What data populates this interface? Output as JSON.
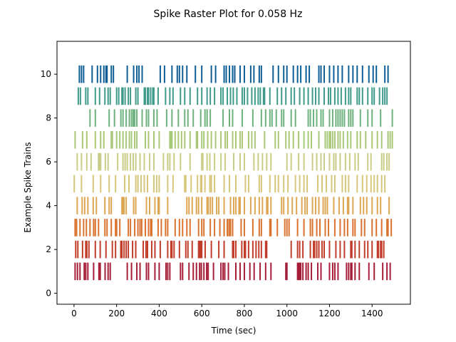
{
  "chart_data": {
    "type": "raster",
    "title": "Spike Raster Plot for 0.058 Hz",
    "xlabel": "Time (sec)",
    "ylabel": "Example Spike Trains",
    "xlim": [
      -80,
      1580
    ],
    "ylim": [
      -0.5,
      11.5
    ],
    "xticks": [
      0,
      200,
      400,
      600,
      800,
      1000,
      1200,
      1400
    ],
    "yticks": [
      0,
      2,
      4,
      6,
      8,
      10
    ],
    "grid": false,
    "legend": "none",
    "line_height": 0.8,
    "series": [
      {
        "trial": 1,
        "color": "#a51d36",
        "spikes": [
          5,
          16,
          28,
          48,
          55,
          65,
          92,
          117,
          123,
          146,
          160,
          170,
          250,
          270,
          295,
          310,
          340,
          350,
          380,
          400,
          432,
          440,
          450,
          500,
          510,
          540,
          560,
          575,
          590,
          598,
          610,
          623,
          630,
          655,
          690,
          700,
          708,
          725,
          760,
          780,
          800,
          826,
          846,
          874,
          900,
          925,
          995,
          1000,
          1050,
          1055,
          1060,
          1065,
          1075,
          1090,
          1100,
          1115,
          1145,
          1160,
          1200,
          1215,
          1225,
          1240,
          1280,
          1290,
          1300,
          1305,
          1320,
          1340,
          1385,
          1410,
          1450,
          1470,
          1485
        ]
      },
      {
        "trial": 2,
        "color": "#c13d2a",
        "spikes": [
          8,
          18,
          40,
          55,
          60,
          70,
          100,
          123,
          150,
          180,
          195,
          220,
          220,
          225,
          235,
          245,
          255,
          275,
          290,
          325,
          338,
          345,
          365,
          380,
          405,
          440,
          455,
          460,
          470,
          495,
          525,
          535,
          555,
          585,
          590,
          595,
          600,
          616,
          645,
          680,
          705,
          745,
          750,
          760,
          788,
          800,
          805,
          820,
          840,
          855,
          868,
          880,
          900,
          905,
          1020,
          1050,
          1060,
          1075,
          1110,
          1125,
          1130,
          1140,
          1150,
          1165,
          1175,
          1200,
          1230,
          1250,
          1270,
          1300,
          1305,
          1320,
          1340,
          1365,
          1380,
          1400,
          1425,
          1430,
          1440,
          1445,
          1455
        ]
      },
      {
        "trial": 3,
        "color": "#d9732f",
        "spikes": [
          5,
          12,
          28,
          45,
          58,
          75,
          92,
          100,
          115,
          145,
          155,
          175,
          195,
          200,
          215,
          255,
          265,
          285,
          300,
          310,
          318,
          335,
          350,
          360,
          365,
          395,
          410,
          430,
          440,
          475,
          495,
          510,
          530,
          545,
          585,
          600,
          610,
          640,
          660,
          685,
          705,
          720,
          728,
          735,
          745,
          785,
          800,
          840,
          870,
          880,
          920,
          925,
          955,
          990,
          1000,
          1010,
          1050,
          1080,
          1110,
          1120,
          1140,
          1155,
          1180,
          1195,
          1225,
          1250,
          1270,
          1285,
          1310,
          1320,
          1350,
          1365,
          1400,
          1420,
          1445,
          1470,
          1475,
          1490
        ]
      },
      {
        "trial": 4,
        "color": "#dca652",
        "spikes": [
          15,
          38,
          50,
          65,
          90,
          105,
          145,
          165,
          175,
          225,
          230,
          235,
          245,
          280,
          290,
          340,
          355,
          380,
          395,
          400,
          440,
          530,
          540,
          555,
          575,
          585,
          600,
          625,
          630,
          640,
          650,
          670,
          680,
          705,
          735,
          750,
          760,
          775,
          780,
          800,
          830,
          850,
          870,
          885,
          905,
          910,
          925,
          975,
          985,
          1005,
          1025,
          1045,
          1070,
          1085,
          1095,
          1120,
          1135,
          1150,
          1170,
          1180,
          1190,
          1220,
          1245,
          1265,
          1285,
          1290,
          1310,
          1345,
          1360,
          1375,
          1400,
          1425,
          1440,
          1480
        ]
      },
      {
        "trial": 5,
        "color": "#d6c67a",
        "spikes": [
          1,
          35,
          90,
          125,
          165,
          195,
          238,
          258,
          290,
          300,
          315,
          330,
          345,
          375,
          388,
          400,
          440,
          465,
          520,
          525,
          550,
          580,
          595,
          600,
          615,
          638,
          645,
          660,
          705,
          730,
          760,
          805,
          820,
          870,
          880,
          920,
          945,
          960,
          985,
          1005,
          1040,
          1060,
          1080,
          1095,
          1145,
          1165,
          1185,
          1210,
          1225,
          1260,
          1275,
          1290,
          1330,
          1355,
          1375,
          1395,
          1410,
          1425,
          1445,
          1460
        ]
      },
      {
        "trial": 6,
        "color": "#c9cc86",
        "spikes": [
          15,
          35,
          60,
          80,
          115,
          120,
          125,
          147,
          160,
          205,
          230,
          240,
          250,
          265,
          278,
          290,
          310,
          330,
          355,
          375,
          420,
          440,
          450,
          470,
          500,
          545,
          600,
          605,
          625,
          638,
          660,
          690,
          710,
          750,
          780,
          800,
          845,
          865,
          885,
          905,
          925,
          1000,
          1020,
          1055,
          1080,
          1120,
          1140,
          1160,
          1175,
          1200,
          1220,
          1230,
          1250,
          1275,
          1295,
          1320,
          1335,
          1380,
          1395,
          1445,
          1455,
          1470,
          1480
        ]
      },
      {
        "trial": 7,
        "color": "#a8c878",
        "spikes": [
          5,
          40,
          60,
          100,
          125,
          140,
          175,
          180,
          200,
          215,
          230,
          245,
          260,
          270,
          285,
          295,
          335,
          350,
          375,
          400,
          450,
          455,
          460,
          475,
          490,
          505,
          520,
          545,
          575,
          580,
          600,
          610,
          628,
          645,
          665,
          690,
          710,
          720,
          745,
          760,
          780,
          790,
          820,
          835,
          850,
          895,
          945,
          960,
          995,
          1010,
          1030,
          1055,
          1080,
          1100,
          1115,
          1150,
          1180,
          1190,
          1200,
          1205,
          1215,
          1225,
          1240,
          1250,
          1265,
          1285,
          1300,
          1330,
          1345,
          1370,
          1400,
          1425,
          1445,
          1475,
          1485,
          1495
        ]
      },
      {
        "trial": 8,
        "color": "#6db17d",
        "spikes": [
          75,
          100,
          165,
          190,
          220,
          230,
          245,
          260,
          270,
          278,
          285,
          295,
          320,
          340,
          350,
          375,
          390,
          435,
          460,
          490,
          520,
          535,
          560,
          595,
          615,
          625,
          640,
          700,
          730,
          745,
          790,
          840,
          880,
          900,
          920,
          930,
          950,
          975,
          985,
          1020,
          1040,
          1100,
          1110,
          1125,
          1140,
          1160,
          1170,
          1200,
          1215,
          1230,
          1240,
          1250,
          1260,
          1270,
          1290,
          1300,
          1310,
          1345,
          1380,
          1400,
          1440,
          1495
        ]
      },
      {
        "trial": 9,
        "color": "#3f9a8a",
        "spikes": [
          20,
          30,
          55,
          65,
          100,
          120,
          145,
          160,
          170,
          200,
          210,
          225,
          230,
          240,
          255,
          265,
          290,
          300,
          330,
          335,
          345,
          350,
          360,
          370,
          375,
          395,
          430,
          450,
          465,
          500,
          520,
          545,
          580,
          600,
          625,
          640,
          660,
          690,
          700,
          720,
          735,
          748,
          765,
          790,
          800,
          815,
          835,
          850,
          865,
          875,
          890,
          895,
          920,
          955,
          975,
          995,
          1020,
          1035,
          1060,
          1080,
          1100,
          1120,
          1135,
          1150,
          1175,
          1195,
          1205,
          1225,
          1240,
          1255,
          1275,
          1290,
          1300,
          1330,
          1340,
          1355,
          1380,
          1400,
          1410,
          1435,
          1450,
          1460,
          1470
        ]
      },
      {
        "trial": 10,
        "color": "#0e5e96",
        "spikes": [
          25,
          35,
          45,
          85,
          110,
          125,
          140,
          150,
          155,
          175,
          185,
          250,
          280,
          295,
          305,
          320,
          405,
          425,
          460,
          485,
          495,
          510,
          530,
          570,
          600,
          645,
          665,
          705,
          715,
          730,
          745,
          755,
          780,
          800,
          830,
          845,
          870,
          880,
          935,
          960,
          985,
          1000,
          1030,
          1050,
          1065,
          1090,
          1105,
          1150,
          1160,
          1175,
          1200,
          1220,
          1240,
          1260,
          1290,
          1310,
          1330,
          1355,
          1385,
          1405,
          1420,
          1460,
          1475
        ]
      }
    ]
  }
}
